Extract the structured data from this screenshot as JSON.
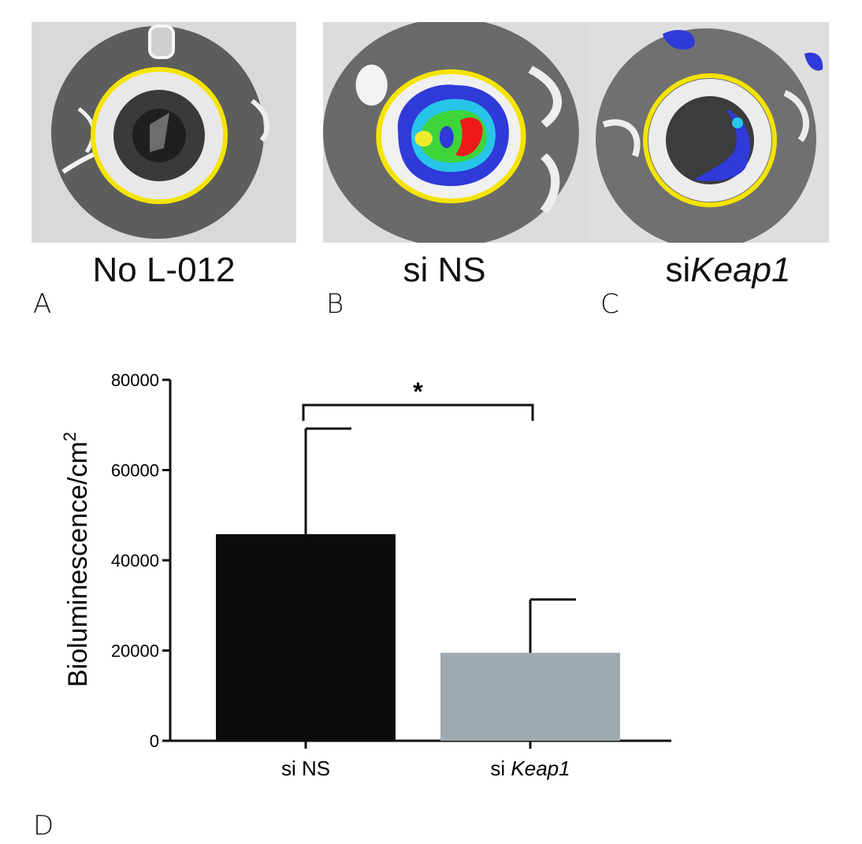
{
  "panels": [
    {
      "letter": "A",
      "caption": "No L-012",
      "caption_italic": ""
    },
    {
      "letter": "B",
      "caption": "si NS",
      "caption_italic": ""
    },
    {
      "letter": "C",
      "caption": "si",
      "caption_italic": "Keap1"
    }
  ],
  "panel_d_letter": "D",
  "colors": {
    "ring": "#f4e400",
    "bar_si_ns": "#0b0c0b",
    "bar_si_keap1": "#9eaab0",
    "axis": "#111111"
  },
  "chart_data": {
    "type": "bar",
    "categories": [
      {
        "prefix": "si NS",
        "italic": ""
      },
      {
        "prefix": "si ",
        "italic": "Keap1"
      }
    ],
    "values": [
      45800,
      19500
    ],
    "error_upper": [
      69200,
      31300
    ],
    "ylabel": "Bioluminescence/cm",
    "ylabel_superscript": "2",
    "ylim": [
      0,
      80000
    ],
    "yticks": [
      "0",
      "20000",
      "40000",
      "60000",
      "80000"
    ],
    "significance": {
      "between": [
        0,
        1
      ],
      "label": "*"
    }
  }
}
